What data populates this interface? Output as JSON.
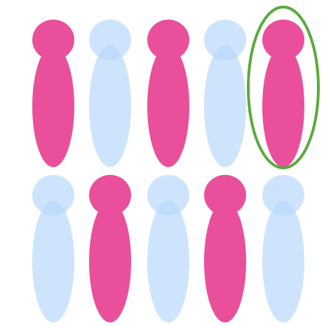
{
  "colors": {
    "background": "#ffffff",
    "filled": "#ea4f9c",
    "empty": "#b8d8fb",
    "highlight": "#5aaa3c"
  },
  "figures": {
    "rows": [
      [
        {
          "state": "filled",
          "highlighted": false
        },
        {
          "state": "empty",
          "highlighted": false
        },
        {
          "state": "filled",
          "highlighted": false
        },
        {
          "state": "empty",
          "highlighted": false
        },
        {
          "state": "filled",
          "highlighted": true
        }
      ],
      [
        {
          "state": "empty",
          "highlighted": false
        },
        {
          "state": "filled",
          "highlighted": false
        },
        {
          "state": "empty",
          "highlighted": false
        },
        {
          "state": "filled",
          "highlighted": false
        },
        {
          "state": "empty",
          "highlighted": false
        }
      ]
    ]
  }
}
